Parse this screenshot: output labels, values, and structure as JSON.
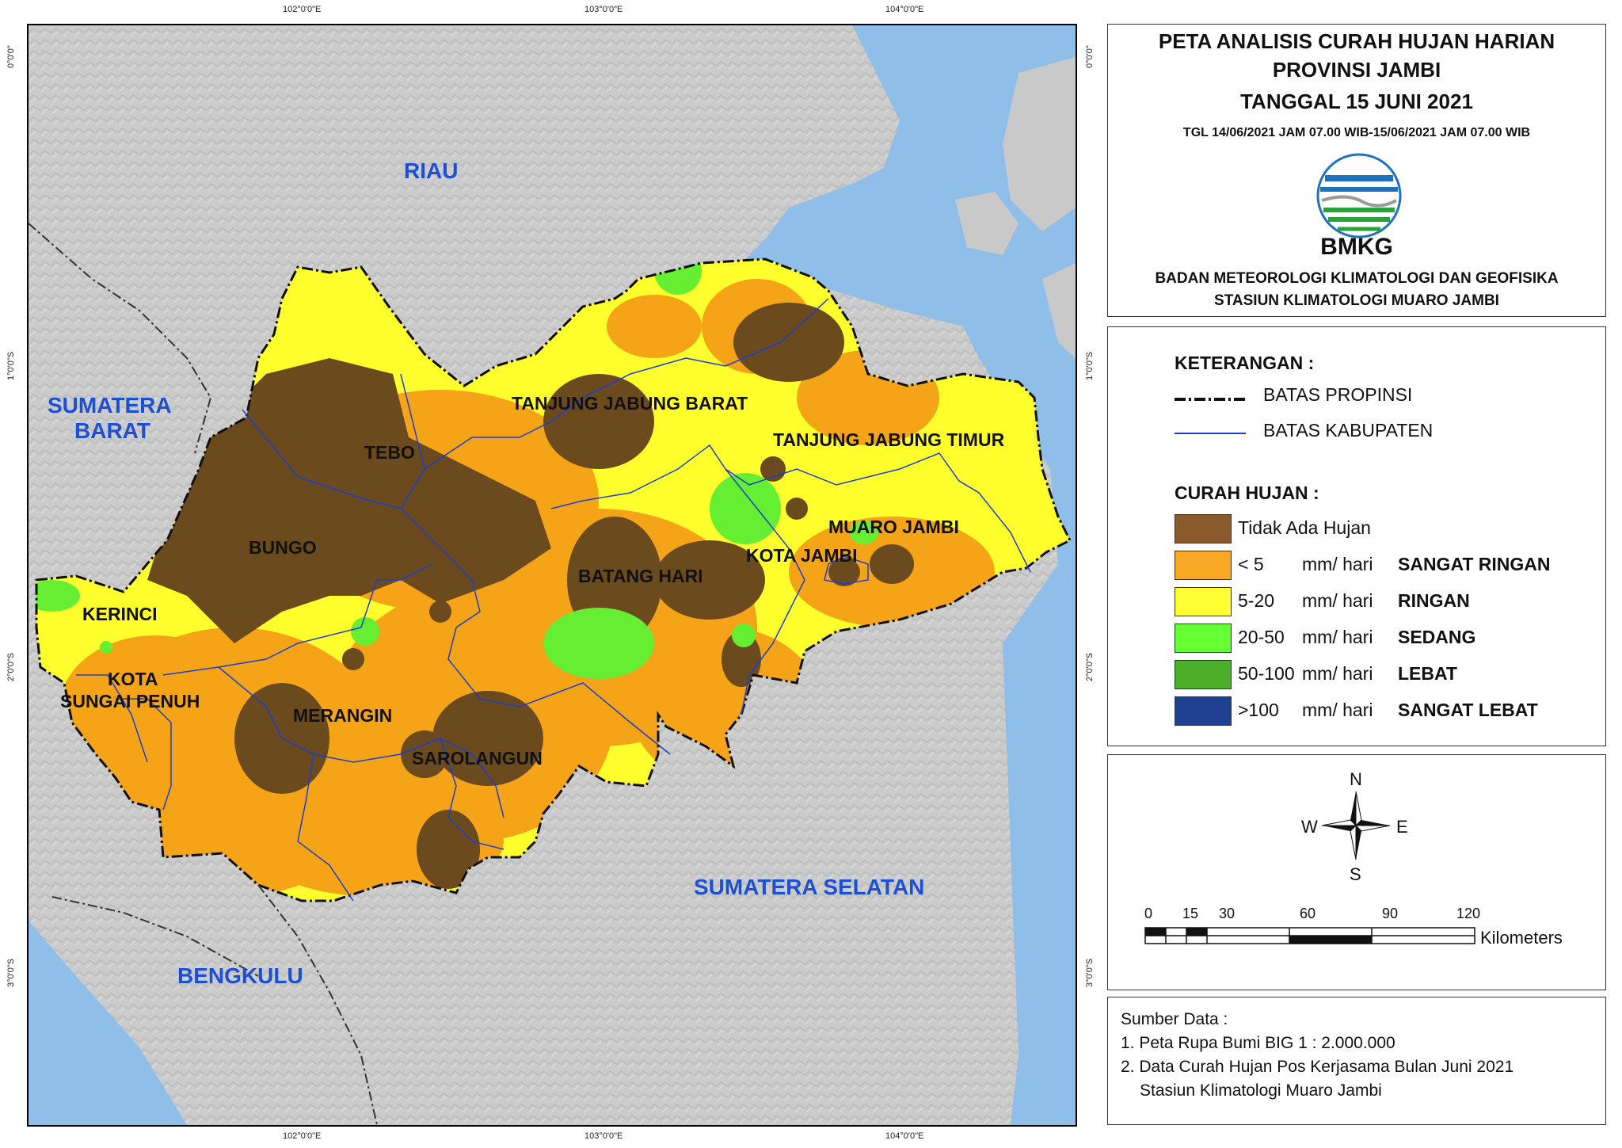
{
  "coords": {
    "top": [
      "102°0'0\"E",
      "103°0'0\"E",
      "104°0'0\"E"
    ],
    "bottom": [
      "102°0'0\"E",
      "103°0'0\"E",
      "104°0'0\"E"
    ],
    "left": [
      "0°0'0\"",
      "1°0'0\"S",
      "2°0'0\"S",
      "3°0'0\"S"
    ],
    "right": [
      "0°0'0\"",
      "1°0'0\"S",
      "2°0'0\"S",
      "3°0'0\"S"
    ]
  },
  "provinces": {
    "riau": "RIAU",
    "sumbar_1": "SUMATERA",
    "sumbar_2": "BARAT",
    "sumsel": "SUMATERA SELATAN",
    "bengkulu": "BENGKULU"
  },
  "districts": {
    "tanjab_barat": "TANJUNG JABUNG BARAT",
    "tanjab_timur": "TANJUNG JABUNG TIMUR",
    "tebo": "TEBO",
    "bungo": "BUNGO",
    "muaro_jambi": "MUARO JAMBI",
    "kota_jambi": "KOTA JAMBI",
    "batang_hari": "BATANG HARI",
    "kerinci": "KERINCI",
    "sungai_penuh_1": "KOTA",
    "sungai_penuh_2": "SUNGAI PENUH",
    "merangin": "MERANGIN",
    "sarolangun": "SAROLANGUN"
  },
  "title": {
    "line1": "PETA ANALISIS CURAH HUJAN HARIAN",
    "line2": "PROVINSI JAMBI",
    "line3": "TANGGAL 15 JUNI 2021",
    "line4": "TGL 14/06/2021 JAM 07.00 WIB-15/06/2021 JAM 07.00 WIB",
    "logo_text": "BMKG",
    "agency1": "BADAN METEOROLOGI KLIMATOLOGI DAN GEOFISIKA",
    "agency2": "STASIUN KLIMATOLOGI MUARO JAMBI"
  },
  "legend": {
    "heading": "KETERANGAN :",
    "boundary_province": "BATAS PROPINSI",
    "boundary_district": "BATAS KABUPATEN",
    "rain_heading": "CURAH HUJAN :",
    "items": [
      {
        "range": "Tidak Ada Hujan",
        "unit": "",
        "category": "",
        "color": "#8b5a2b"
      },
      {
        "range": "< 5",
        "unit": "mm/ hari",
        "category": "SANGAT RINGAN",
        "color": "#f9a825"
      },
      {
        "range": "5-20",
        "unit": "mm/ hari",
        "category": "RINGAN",
        "color": "#ffff33"
      },
      {
        "range": "20-50",
        "unit": "mm/ hari",
        "category": "SEDANG",
        "color": "#66ff33"
      },
      {
        "range": "50-100",
        "unit": "mm/ hari",
        "category": "LEBAT",
        "color": "#4caf2a"
      },
      {
        "range": ">100",
        "unit": "mm/ hari",
        "category": "SANGAT LEBAT",
        "color": "#1f3f8f"
      }
    ]
  },
  "compass": {
    "n": "N",
    "s": "S",
    "e": "E",
    "w": "W"
  },
  "scale": {
    "ticks": [
      "0",
      "15",
      "30",
      "60",
      "90",
      "120"
    ],
    "unit": "Kilometers"
  },
  "source": {
    "heading": "Sumber Data :",
    "line1": "1. Peta Rupa Bumi BIG 1 : 2.000.000",
    "line2": "2. Data Curah Hujan Pos Kerjasama Bulan Juni 2021",
    "line3": "Stasiun Klimatologi Muaro Jambi"
  },
  "colors": {
    "sea": "#7fb7e8",
    "land": "#c9c9c9",
    "no_rain": "#6b4a1e",
    "very_light": "#f5a418",
    "light": "#ffff2e",
    "moderate": "#66ee33",
    "district_line": "#1a3fd0",
    "text_blue": "#1a4fd6"
  }
}
